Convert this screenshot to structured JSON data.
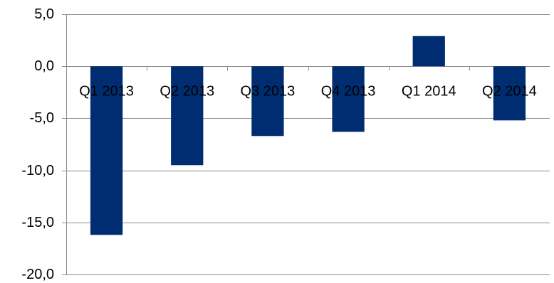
{
  "chart_data": {
    "type": "bar",
    "categories": [
      "Q1 2013",
      "Q2 2013",
      "Q3 2013",
      "Q4 2013",
      "Q1 2014",
      "Q2 2014"
    ],
    "series": [
      {
        "values": [
          -16.2,
          -9.5,
          -6.7,
          -6.3,
          2.9,
          -5.2
        ]
      }
    ],
    "y_ticks": [
      5,
      0,
      -5,
      -10,
      -15,
      -20
    ],
    "y_tick_labels": [
      "5,0",
      "0,0",
      "-5,0",
      "-10,0",
      "-15,0",
      "-20,0"
    ],
    "ylim": [
      -20,
      5
    ],
    "grid": true,
    "legend": "none",
    "title": "",
    "xlabel": "",
    "ylabel": "",
    "bar_color": "#002D72",
    "grid_color": "#8C8C8C"
  }
}
